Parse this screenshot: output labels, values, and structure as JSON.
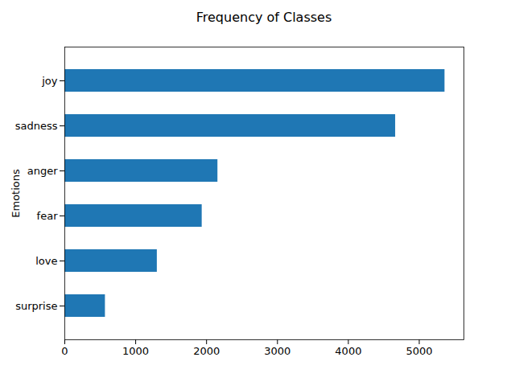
{
  "chart_data": {
    "type": "bar",
    "orientation": "horizontal",
    "title": "Frequency of Classes",
    "ylabel": "Emotions",
    "categories": [
      "joy",
      "sadness",
      "anger",
      "fear",
      "love",
      "surprise"
    ],
    "values": [
      5362,
      4666,
      2159,
      1937,
      1304,
      572
    ],
    "color": "#1f77b4",
    "xlim": [
      0,
      5630
    ],
    "xticks": [
      0,
      1000,
      2000,
      3000,
      4000,
      5000
    ],
    "grid": false
  }
}
